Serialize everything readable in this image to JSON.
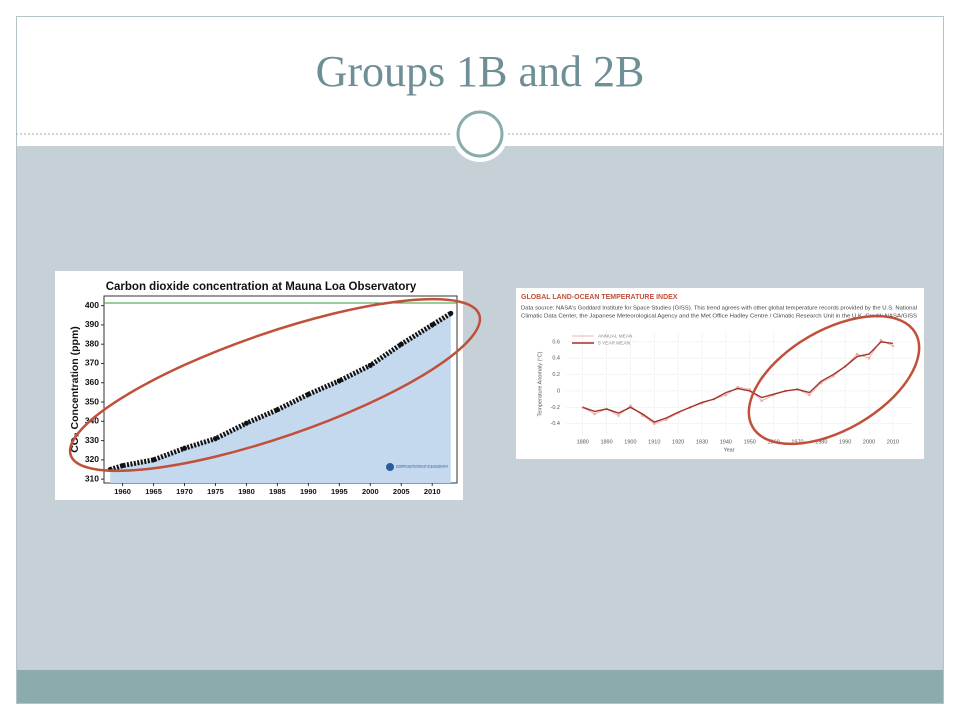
{
  "slide_title": "Groups 1B and 2B",
  "chart_data": [
    {
      "type": "line",
      "title": "Carbon dioxide concentration at Mauna Loa Observatory",
      "y_label": "CO₂ Concentration (ppm)",
      "credit": "SCRIPPS INSTITUTION OF OCEANOGRAPHY",
      "x": [
        1958,
        1960,
        1965,
        1970,
        1975,
        1980,
        1985,
        1990,
        1995,
        2000,
        2005,
        2010,
        2013
      ],
      "values": [
        315,
        317,
        320,
        326,
        331,
        339,
        346,
        354,
        361,
        369,
        380,
        390,
        396
      ],
      "color": "#111111",
      "area_color": "#c4d8ee",
      "xlim": [
        1957,
        2014
      ],
      "xticks": [
        1960,
        1965,
        1970,
        1975,
        1980,
        1985,
        1990,
        1995,
        2000,
        2005,
        2010
      ],
      "ylim": [
        308,
        405
      ],
      "yticks": [
        310,
        320,
        330,
        340,
        350,
        360,
        370,
        380,
        390,
        400
      ],
      "grid": false
    },
    {
      "type": "line",
      "title": "GLOBAL LAND-OCEAN TEMPERATURE INDEX",
      "source": [
        "Data source: NASA's Goddard Institute for Space Studies (GISS). This trend agrees with other global temperature records provided by the U.S. National",
        "Climatic Data Center, the Japanese Meteorological Agency and the Met Office Hadley Centre / Climatic Research Unit in the U.K. Credit: NASA/GISS"
      ],
      "y_label": "Temperature Anomaly (°C)",
      "x_label": "Year",
      "x": [
        1880,
        1885,
        1890,
        1895,
        1900,
        1905,
        1910,
        1915,
        1920,
        1925,
        1930,
        1935,
        1940,
        1945,
        1950,
        1955,
        1960,
        1965,
        1970,
        1975,
        1980,
        1985,
        1990,
        1995,
        2000,
        2005,
        2010
      ],
      "series": [
        {
          "name": "ANNUAL MEAN",
          "color": "#e8a39a",
          "values": [
            -0.2,
            -0.28,
            -0.22,
            -0.3,
            -0.18,
            -0.3,
            -0.4,
            -0.35,
            -0.27,
            -0.2,
            -0.15,
            -0.1,
            -0.05,
            0.05,
            0.02,
            -0.12,
            -0.05,
            0.0,
            0.02,
            -0.05,
            0.1,
            0.18,
            0.3,
            0.45,
            0.4,
            0.62,
            0.55
          ]
        },
        {
          "name": "5 YEAR MEAN",
          "color": "#a3322a",
          "values": [
            -0.2,
            -0.25,
            -0.22,
            -0.27,
            -0.2,
            -0.28,
            -0.38,
            -0.33,
            -0.26,
            -0.2,
            -0.14,
            -0.1,
            -0.02,
            0.03,
            0.0,
            -0.08,
            -0.04,
            0.0,
            0.02,
            -0.02,
            0.12,
            0.2,
            0.3,
            0.42,
            0.45,
            0.6,
            0.58
          ]
        }
      ],
      "xlim": [
        1873,
        2018
      ],
      "xticks": [
        1880,
        1890,
        1900,
        1910,
        1920,
        1930,
        1940,
        1950,
        1960,
        1970,
        1980,
        1990,
        2000,
        2010
      ],
      "ylim": [
        -0.55,
        0.72
      ],
      "yticks": [
        -0.4,
        -0.2,
        0,
        0.2,
        0.4,
        0.6
      ],
      "grid": true,
      "legend": "top-left"
    }
  ]
}
